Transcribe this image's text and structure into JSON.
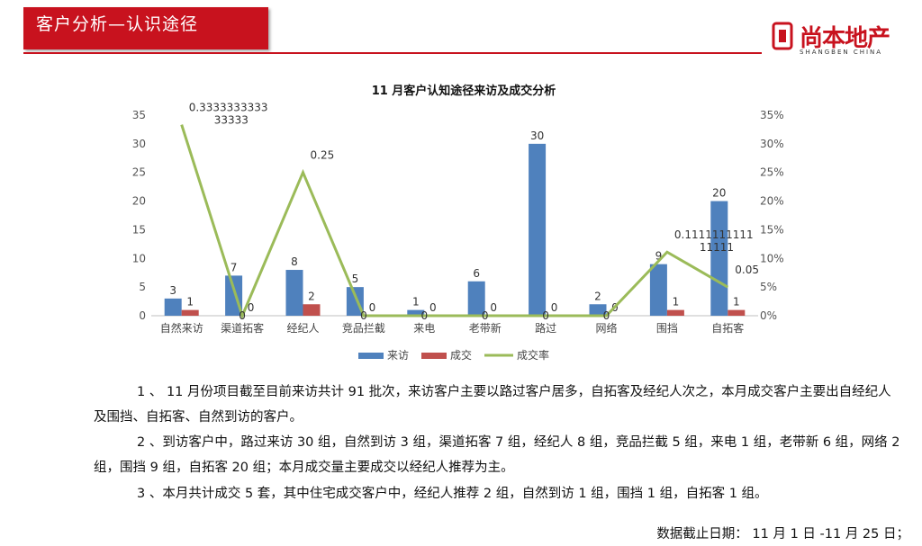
{
  "header": {
    "title": "客户分析—认识途径",
    "brand": "尚本地产",
    "brand_sub": "SHANGBEN CHINA"
  },
  "chart_data": {
    "type": "bar",
    "title": "11 月客户认知途径来访及成交分析",
    "categories": [
      "自然来访",
      "渠道拓客",
      "经纪人",
      "竞品拦截",
      "来电",
      "老带新",
      "路过",
      "网络",
      "围挡",
      "自拓客"
    ],
    "series": [
      {
        "name": "来访",
        "type": "bar",
        "axis": "left",
        "color": "#4f81bd",
        "values": [
          3,
          7,
          8,
          5,
          1,
          6,
          30,
          2,
          9,
          20
        ],
        "labels": [
          "3",
          "7",
          "8",
          "5",
          "1",
          "6",
          "30",
          "2",
          "9",
          "20"
        ]
      },
      {
        "name": "成交",
        "type": "bar",
        "axis": "left",
        "color": "#c0504d",
        "values": [
          1,
          0,
          2,
          0,
          0,
          0,
          0,
          0,
          1,
          1
        ],
        "labels": [
          "1",
          "0",
          "2",
          "0",
          "0",
          "0",
          "0",
          "0",
          "1",
          "1"
        ]
      },
      {
        "name": "成交率",
        "type": "line",
        "axis": "right",
        "color": "#9bbb59",
        "values": [
          0.333333333333333,
          0,
          0.25,
          0,
          0,
          0,
          0,
          0,
          0.111111111111111,
          0.05
        ],
        "labels": [
          "0.3333333333\n33333",
          "0",
          "0.25",
          "0",
          "0",
          "0",
          "0",
          "0",
          "0.1111111111\n11111",
          "0.05"
        ]
      }
    ],
    "y_left": {
      "min": 0,
      "max": 35,
      "ticks": [
        "0",
        "5",
        "10",
        "15",
        "20",
        "25",
        "30",
        "35"
      ]
    },
    "y_right": {
      "min": 0,
      "max": 0.35,
      "ticks": [
        "0%",
        "5%",
        "10%",
        "15%",
        "20%",
        "25%",
        "30%",
        "35%"
      ]
    },
    "legend_position": "bottom",
    "grid": false
  },
  "paragraphs": [
    "1 、 11 月份项目截至目前来访共计 91 批次，来访客户主要以路过客户居多，自拓客及经纪人次之，本月成交客户主要出自经纪人及围挡、自拓客、自然到访的客户。",
    "2 、到访客户中，路过来访 30 组，自然到访 3 组，渠道拓客 7 组，经纪人 8 组，竞品拦截 5 组，来电 1 组，老带新 6 组，网络 2 组，围挡 9 组，自拓客 20 组；本月成交量主要成交以经纪人推荐为主。",
    "3 、本月共计成交 5 套，其中住宅成交客户中，经纪人推荐 2 组，自然到访 1 组，围挡 1 组，自拓客 1 组。"
  ],
  "footer": {
    "date_note": "数据截止日期： 11 月 1 日 -11 月 25 日；"
  },
  "colors": {
    "brand_red": "#c8121e"
  }
}
